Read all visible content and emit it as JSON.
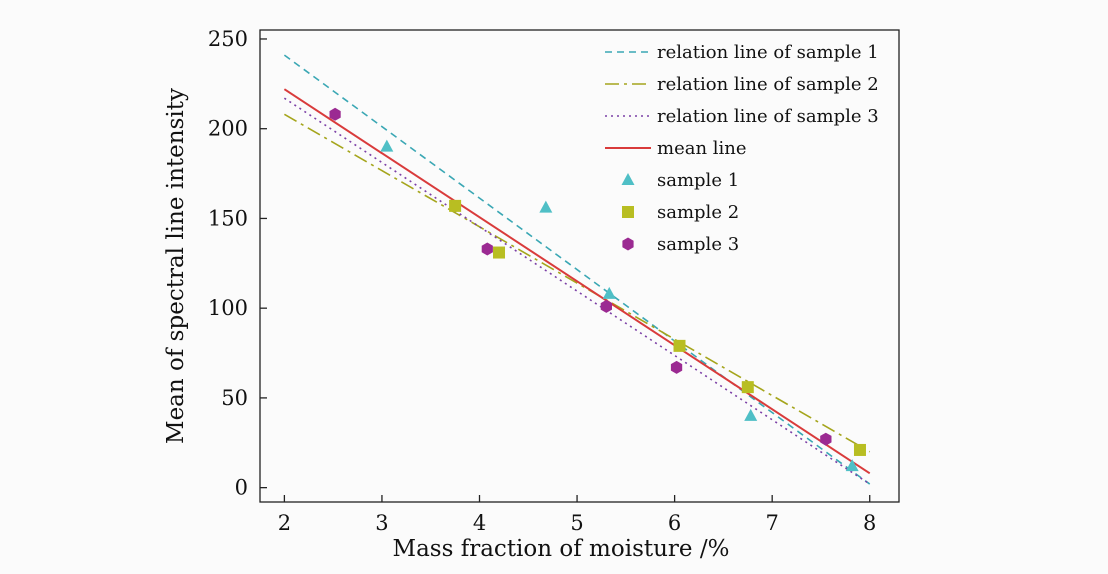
{
  "chart_data": {
    "type": "scatter",
    "xlabel": "Mass fraction of moisture /%",
    "ylabel": "Mean of spectral line intensity",
    "xlim": [
      1.75,
      8.3
    ],
    "ylim": [
      -8,
      255
    ],
    "xticks": [
      2,
      3,
      4,
      5,
      6,
      7,
      8
    ],
    "yticks": [
      0,
      50,
      100,
      150,
      200,
      250
    ],
    "grid": false,
    "legend_position": "top-right",
    "lines": [
      {
        "name": "relation line of sample 1",
        "x": [
          2,
          8
        ],
        "y": [
          241,
          2
        ],
        "color": "#3aa7b4",
        "dash": "7,5"
      },
      {
        "name": "relation line of sample 2",
        "x": [
          2,
          8
        ],
        "y": [
          208,
          20
        ],
        "color": "#a5a51c",
        "dash": "14,5,3,5"
      },
      {
        "name": "relation line of sample 3",
        "x": [
          2,
          8
        ],
        "y": [
          217,
          2
        ],
        "color": "#7b3fa6",
        "dash": "2,4"
      },
      {
        "name": "mean line",
        "x": [
          2,
          8
        ],
        "y": [
          222,
          8
        ],
        "color": "#d93b3b",
        "dash": ""
      }
    ],
    "series": [
      {
        "name": "sample 1",
        "marker": "triangle",
        "color": "#4fbfc6",
        "x": [
          3.05,
          4.68,
          5.33,
          6.78,
          7.82
        ],
        "y": [
          190,
          156,
          108,
          40,
          12
        ]
      },
      {
        "name": "sample 2",
        "marker": "square",
        "color": "#b8be22",
        "x": [
          3.75,
          4.2,
          6.05,
          6.75,
          7.9
        ],
        "y": [
          157,
          131,
          79,
          56,
          21
        ]
      },
      {
        "name": "sample 3",
        "marker": "hexagon",
        "color": "#9b2a92",
        "x": [
          2.52,
          4.08,
          5.3,
          6.02,
          7.55
        ],
        "y": [
          208,
          133,
          101,
          67,
          27
        ]
      }
    ]
  }
}
